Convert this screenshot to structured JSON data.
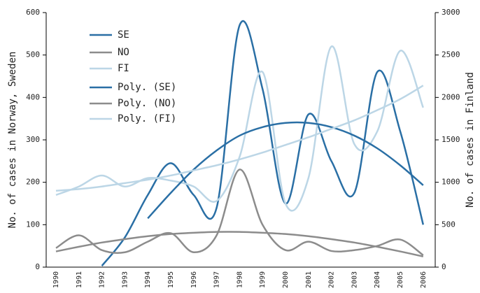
{
  "chart_data": {
    "type": "line",
    "ylabel": "No. of cases in Norway, Sweden",
    "y2label": "No. of cases in Finland",
    "categories": [
      "1990",
      "1991",
      "1992",
      "1993",
      "1994",
      "1995",
      "1996",
      "1997",
      "1998",
      "1999",
      "2000",
      "2001",
      "2002",
      "2003",
      "2004",
      "2005",
      "2006"
    ],
    "series": [
      {
        "name": "SE",
        "color": "#2a6fa5",
        "axis": "y",
        "values": [
          null,
          null,
          3,
          70,
          170,
          245,
          170,
          140,
          570,
          420,
          150,
          360,
          250,
          175,
          460,
          320,
          100
        ]
      },
      {
        "name": "NO",
        "color": "#8c8c8c",
        "axis": "y",
        "values": [
          45,
          75,
          40,
          35,
          60,
          80,
          35,
          75,
          230,
          100,
          40,
          60,
          38,
          40,
          50,
          65,
          28
        ]
      },
      {
        "name": "FI",
        "color": "#bcd6e6",
        "axis": "y2",
        "values": [
          850,
          950,
          1080,
          950,
          1050,
          1020,
          950,
          780,
          1300,
          2300,
          750,
          1050,
          2600,
          1450,
          1600,
          2550,
          1880
        ]
      },
      {
        "name": "Poly. (SE)",
        "color": "#2a6fa5",
        "axis": "y",
        "values": [
          null,
          null,
          null,
          null,
          115,
          175,
          230,
          275,
          310,
          330,
          340,
          340,
          330,
          310,
          280,
          240,
          193
        ]
      },
      {
        "name": "Poly. (NO)",
        "color": "#8c8c8c",
        "axis": "y",
        "values": [
          37,
          48,
          58,
          66,
          73,
          78,
          81,
          83,
          83,
          81,
          78,
          73,
          66,
          58,
          48,
          37,
          25
        ]
      },
      {
        "name": "Poly. (FI)",
        "color": "#bcd6e6",
        "axis": "y2",
        "values": [
          900,
          920,
          950,
          990,
          1030,
          1080,
          1140,
          1200,
          1270,
          1350,
          1440,
          1530,
          1630,
          1730,
          1850,
          1980,
          2140
        ]
      }
    ],
    "ylim": [
      0,
      600
    ],
    "yticks": [
      0,
      100,
      200,
      300,
      400,
      500,
      600
    ],
    "y2lim": [
      0,
      3000
    ],
    "y2ticks": [
      0,
      500,
      1000,
      1500,
      2000,
      2500,
      3000
    ],
    "legend": "upper left"
  }
}
